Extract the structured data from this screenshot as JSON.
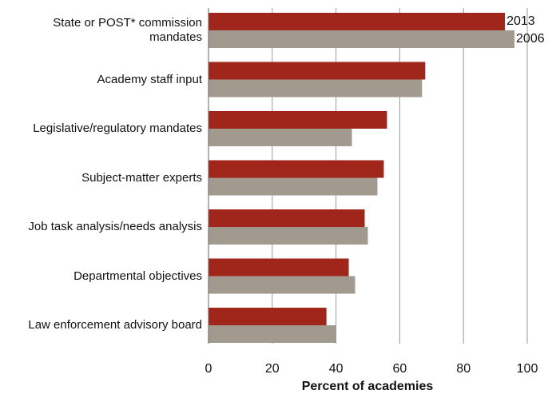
{
  "chart_data": {
    "type": "bar",
    "orientation": "horizontal",
    "categories": [
      "State or POST* commission mandates",
      "Academy staff input",
      "Legislative/regulatory mandates",
      "Subject-matter experts",
      "Job task analysis/needs analysis",
      "Departmental objectives",
      "Law enforcement advisory board"
    ],
    "series": [
      {
        "name": "2013",
        "color": "#a0251b",
        "values": [
          93,
          68,
          56,
          55,
          49,
          44,
          37
        ]
      },
      {
        "name": "2006",
        "color": "#a39a8f",
        "values": [
          96,
          67,
          45,
          53,
          50,
          46,
          40
        ]
      }
    ],
    "xlim": [
      0,
      100
    ],
    "xticks": [
      0,
      20,
      40,
      60,
      80,
      100
    ],
    "xlabel": "Percent of academies",
    "grid": true
  }
}
